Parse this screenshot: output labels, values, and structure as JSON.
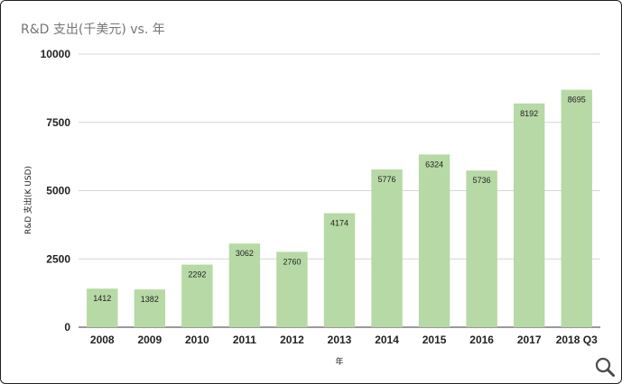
{
  "chart_data": {
    "type": "bar",
    "title": "R&D 支出(千美元) vs. 年",
    "xlabel": "年",
    "ylabel": "R&D 支出(K USD)",
    "categories": [
      "2008",
      "2009",
      "2010",
      "2011",
      "2012",
      "2013",
      "2014",
      "2015",
      "2016",
      "2017",
      "2018 Q3"
    ],
    "values": [
      1412,
      1382,
      2292,
      3062,
      2760,
      4174,
      5776,
      6324,
      5736,
      8192,
      8695
    ],
    "ylim": [
      0,
      10000
    ],
    "yticks": [
      "0",
      "2500",
      "5000",
      "7500",
      "10000"
    ],
    "ytick_values": [
      0,
      2500,
      5000,
      7500,
      10000
    ],
    "grid": true,
    "bar_color": "#b7d9a5"
  },
  "controls": {
    "zoom_icon": "magnifier-icon"
  }
}
